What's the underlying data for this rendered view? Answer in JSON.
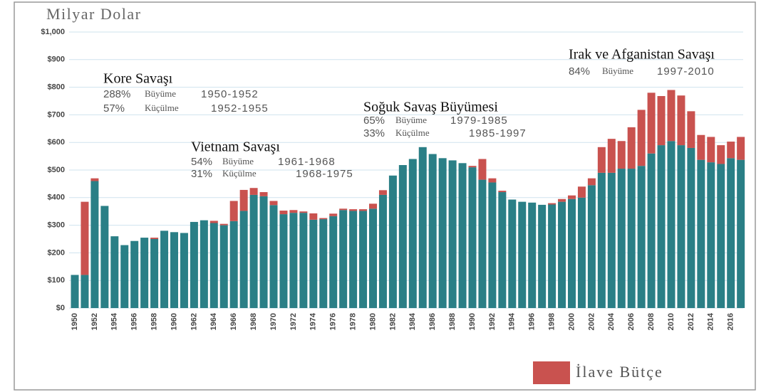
{
  "chart_data": {
    "type": "bar",
    "stacked": true,
    "title": "Milyar Dolar",
    "categories": [
      "1950",
      null,
      "1952",
      null,
      "1954",
      null,
      "1956",
      null,
      "1958",
      null,
      "1960",
      null,
      "1962",
      null,
      "1964",
      null,
      "1966",
      null,
      "1968",
      null,
      "1970",
      null,
      "1972",
      null,
      "1974",
      null,
      "1976",
      null,
      "1978",
      null,
      "1980",
      null,
      "1982",
      null,
      "1984",
      null,
      "1986",
      null,
      "1988",
      null,
      "1990",
      null,
      "1992",
      null,
      "1994",
      null,
      "1996",
      null,
      "1998",
      null,
      "2000",
      null,
      "2002",
      null,
      "2004",
      null,
      "2006",
      null,
      "2008",
      null,
      "2010",
      null,
      "2012",
      null,
      "2014",
      null,
      "2016",
      null
    ],
    "series": [
      {
        "color": "#2a7f86",
        "values": [
          120,
          120,
          460,
          370,
          260,
          228,
          243,
          255,
          250,
          280,
          275,
          272,
          312,
          318,
          308,
          300,
          315,
          352,
          410,
          405,
          373,
          340,
          345,
          345,
          320,
          322,
          333,
          355,
          352,
          352,
          360,
          410,
          480,
          518,
          540,
          583,
          558,
          543,
          535,
          525,
          510,
          465,
          455,
          420,
          393,
          385,
          382,
          374,
          375,
          385,
          395,
          400,
          445,
          490,
          490,
          505,
          505,
          515,
          560,
          590,
          605,
          590,
          580,
          537,
          528,
          522,
          543,
          537
        ]
      },
      {
        "name": "İlave Bütçe",
        "color": "#c9524f",
        "values": [
          0,
          265,
          10,
          0,
          0,
          0,
          0,
          0,
          5,
          0,
          0,
          0,
          0,
          0,
          8,
          5,
          73,
          76,
          25,
          15,
          15,
          13,
          10,
          5,
          23,
          4,
          9,
          5,
          6,
          6,
          18,
          17,
          0,
          0,
          0,
          0,
          0,
          0,
          0,
          0,
          5,
          75,
          15,
          5,
          0,
          0,
          0,
          0,
          5,
          10,
          13,
          40,
          25,
          93,
          123,
          100,
          150,
          203,
          220,
          178,
          185,
          180,
          133,
          90,
          92,
          68,
          60,
          83
        ]
      }
    ],
    "ylim": [
      0,
      1000
    ],
    "yticks": [
      {
        "value": 0,
        "label": "$0"
      },
      {
        "value": 100,
        "label": "$100"
      },
      {
        "value": 200,
        "label": "$200"
      },
      {
        "value": 300,
        "label": "$300"
      },
      {
        "value": 400,
        "label": "$400"
      },
      {
        "value": 500,
        "label": "$500"
      },
      {
        "value": 600,
        "label": "$600"
      },
      {
        "value": 700,
        "label": "$700"
      },
      {
        "value": 800,
        "label": "$800"
      },
      {
        "value": 900,
        "label": "$900"
      },
      {
        "value": 1000,
        "label": "$1,000"
      }
    ],
    "grid": true,
    "annotations": [
      {
        "title": "Kore Savaşı",
        "lines": [
          [
            "288%",
            "Büyüme",
            "1950-1952"
          ],
          [
            "57%",
            "Küçülme",
            "1952-1955"
          ]
        ]
      },
      {
        "title": "Vietnam Savaşı",
        "lines": [
          [
            "54%",
            "Büyüme",
            "1961-1968"
          ],
          [
            "31%",
            "Küçülme",
            "1968-1975"
          ]
        ]
      },
      {
        "title": "Soğuk Savaş Büyümesi",
        "lines": [
          [
            "65%",
            "Büyüme",
            "1979-1985"
          ],
          [
            "33%",
            "Küçülme",
            "1985-1997"
          ]
        ]
      },
      {
        "title": "Irak ve Afganistan Savaşı",
        "lines": [
          [
            "84%",
            "Büyüme",
            "1997-2010"
          ]
        ]
      }
    ]
  }
}
